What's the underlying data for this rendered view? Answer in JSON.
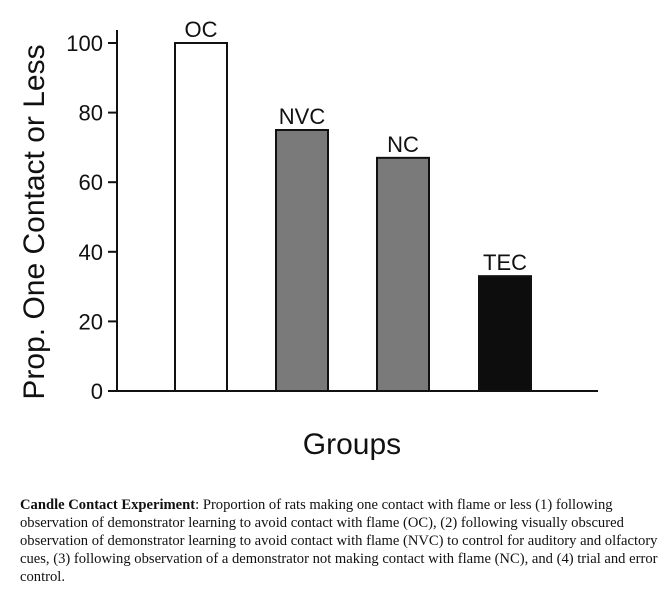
{
  "chart_data": {
    "type": "bar",
    "categories": [
      "OC",
      "NVC",
      "NC",
      "TEC"
    ],
    "values": [
      100,
      75,
      67,
      33
    ],
    "bar_colors": [
      "#ffffff",
      "#7a7a7a",
      "#7a7a7a",
      "#0d0d0d"
    ],
    "xlabel": "Groups",
    "ylabel": "Prop. One Contact or Less",
    "yticks": [
      "0",
      "20",
      "40",
      "60",
      "80",
      "100"
    ],
    "ylim": [
      0,
      100
    ],
    "grid": false,
    "legend": "none"
  },
  "caption": {
    "title": "Candle Contact Experiment",
    "separator": ": ",
    "text": "Proportion of rats making one contact with flame or less (1) following observation of demonstrator learning to avoid contact with flame (OC), (2) following visually obscured observation of demonstrator learning to avoid contact with flame (NVC) to control for auditory and olfactory cues, (3) following observation of a demonstrator not making contact with flame (NC), and (4) trial and error control."
  }
}
